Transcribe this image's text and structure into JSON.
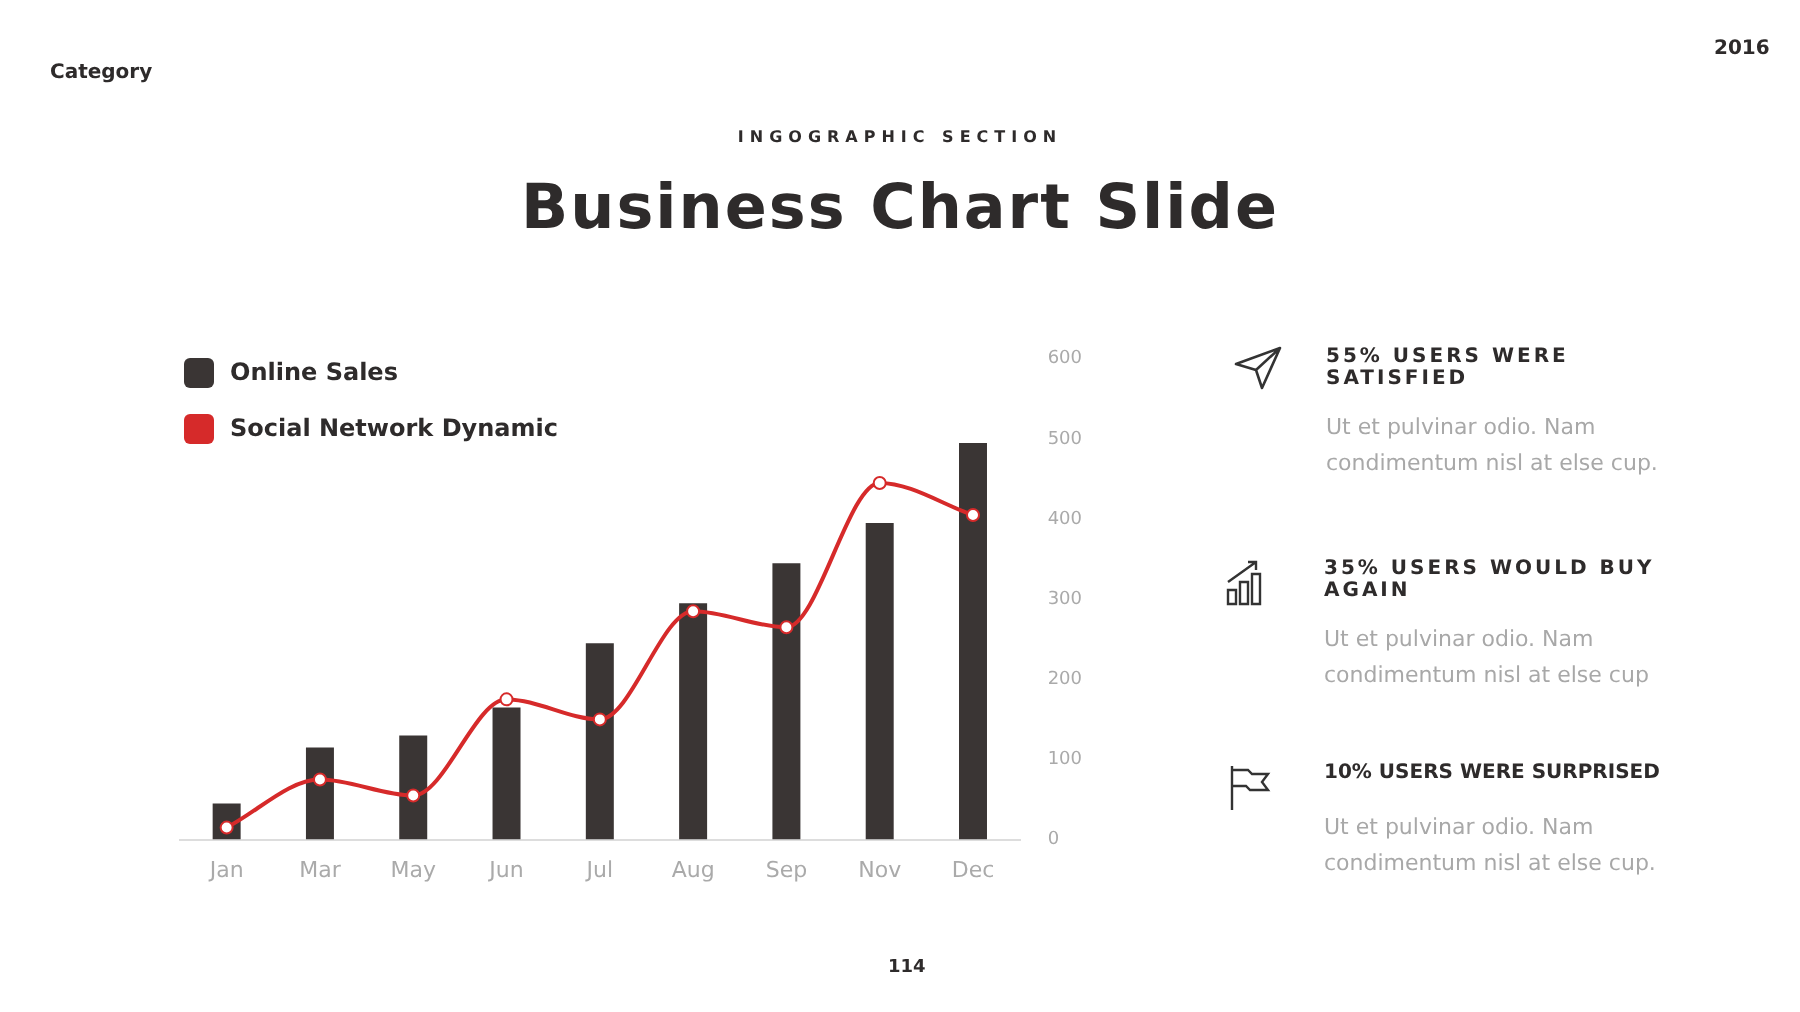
{
  "chart_data": {
    "type": "bar",
    "title": "Business Chart Slide",
    "subtitle": "INGOGRAPHIC SECTION",
    "categories": [
      "Jan",
      "Mar",
      "May",
      "Jun",
      "Jul",
      "Aug",
      "Sep",
      "Nov",
      "Dec"
    ],
    "series": [
      {
        "name": "Online Sales",
        "color": "#3a3534",
        "values": [
          45,
          115,
          130,
          165,
          245,
          295,
          345,
          395,
          495
        ]
      },
      {
        "name": "Social Network Dynamic",
        "type": "line",
        "color": "#d62a2a",
        "marker": "circle",
        "values": [
          15,
          75,
          55,
          175,
          150,
          285,
          265,
          445,
          405
        ]
      }
    ],
    "ylim": [
      0,
      600
    ],
    "yticks": [
      0,
      100,
      200,
      300,
      400,
      500,
      600
    ],
    "grid": false,
    "legend": "top left",
    "annotations": [
      "Category",
      "2016",
      "55% USERS WERE SATISFIED",
      "Ut et pulvinar odio. Nam condimentum nisl at else cup.",
      "35% USERS WOULD BUY AGAIN",
      "Ut et pulvinar odio. Nam condimentum nisl at else cup",
      "10% USERS WERE SURPRISED",
      "Ut et pulvinar odio. Nam condimentum nisl at else cup.",
      "114"
    ]
  }
}
